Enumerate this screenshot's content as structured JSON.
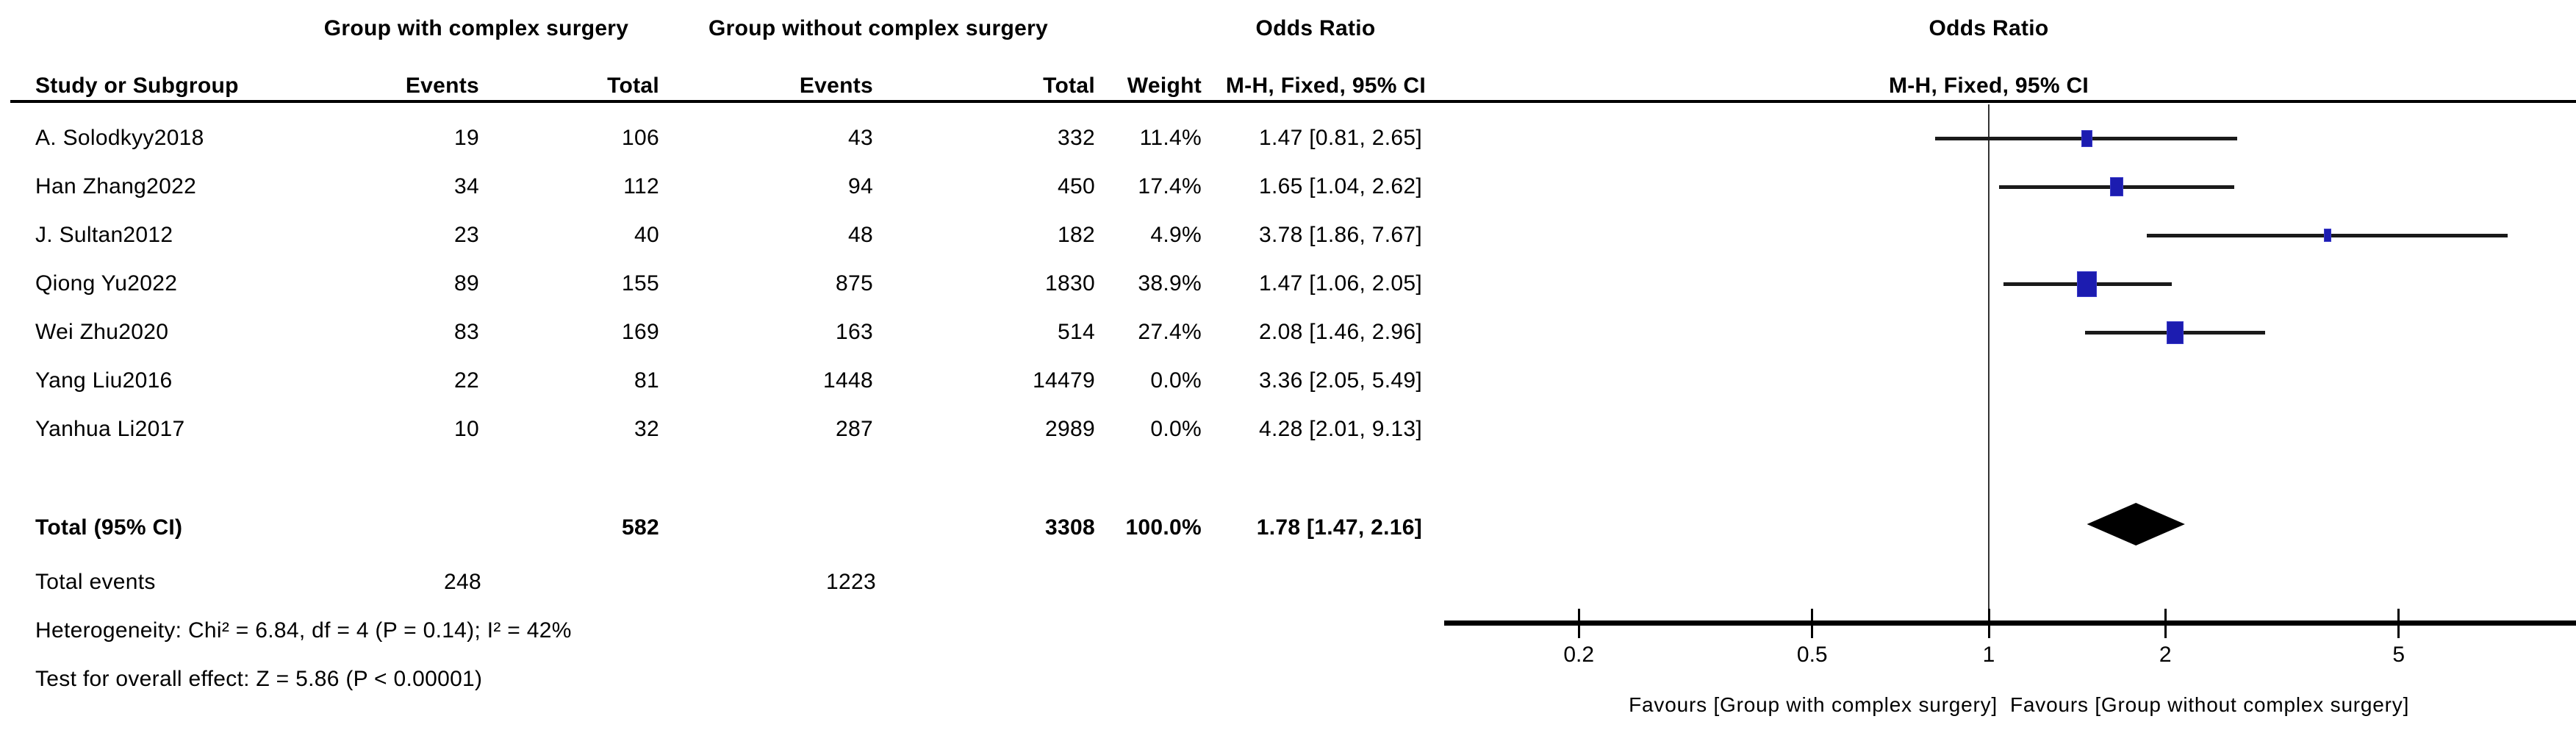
{
  "table_header": {
    "group1": "Group with complex surgery",
    "group2": "Group without complex surgery",
    "odds_ratio": "Odds Ratio",
    "study_or_subgroup": "Study or Subgroup",
    "events": "Events",
    "total": "Total",
    "weight": "Weight",
    "mh_fixed_ci": "M-H, Fixed, 95% CI"
  },
  "chart_data": {
    "type": "forest",
    "effect_measure": "Odds Ratio (M-H, Fixed, 95% CI)",
    "x_axis": {
      "scale": "log",
      "ticks": [
        0.2,
        0.5,
        1,
        2,
        5
      ],
      "tick_labels": [
        "0.2",
        "0.5",
        "1",
        "2",
        "5"
      ],
      "favours_left": "Favours [Group with complex surgery]",
      "favours_right": "Favours [Group without complex surgery]"
    },
    "studies": [
      {
        "name": "A. Solodkyy2018",
        "events1": 19,
        "total1": 106,
        "events2": 43,
        "total2": 332,
        "weight": "11.4%",
        "weight_value": 11.4,
        "ci_text": "1.47 [0.81, 2.65]",
        "or": 1.47,
        "lo": 0.81,
        "hi": 2.65,
        "plotted": true
      },
      {
        "name": "Han Zhang2022",
        "events1": 34,
        "total1": 112,
        "events2": 94,
        "total2": 450,
        "weight": "17.4%",
        "weight_value": 17.4,
        "ci_text": "1.65 [1.04, 2.62]",
        "or": 1.65,
        "lo": 1.04,
        "hi": 2.62,
        "plotted": true
      },
      {
        "name": "J. Sultan2012",
        "events1": 23,
        "total1": 40,
        "events2": 48,
        "total2": 182,
        "weight": "4.9%",
        "weight_value": 4.9,
        "ci_text": "3.78 [1.86, 7.67]",
        "or": 3.78,
        "lo": 1.86,
        "hi": 7.67,
        "plotted": true
      },
      {
        "name": "Qiong Yu2022",
        "events1": 89,
        "total1": 155,
        "events2": 875,
        "total2": 1830,
        "weight": "38.9%",
        "weight_value": 38.9,
        "ci_text": "1.47 [1.06, 2.05]",
        "or": 1.47,
        "lo": 1.06,
        "hi": 2.05,
        "plotted": true
      },
      {
        "name": "Wei Zhu2020",
        "events1": 83,
        "total1": 169,
        "events2": 163,
        "total2": 514,
        "weight": "27.4%",
        "weight_value": 27.4,
        "ci_text": "2.08 [1.46, 2.96]",
        "or": 2.08,
        "lo": 1.46,
        "hi": 2.96,
        "plotted": true
      },
      {
        "name": "Yang Liu2016",
        "events1": 22,
        "total1": 81,
        "events2": 1448,
        "total2": 14479,
        "weight": "0.0%",
        "weight_value": 0.0,
        "ci_text": "3.36 [2.05, 5.49]",
        "or": 3.36,
        "lo": 2.05,
        "hi": 5.49,
        "plotted": false
      },
      {
        "name": "Yanhua Li2017",
        "events1": 10,
        "total1": 32,
        "events2": 287,
        "total2": 2989,
        "weight": "0.0%",
        "weight_value": 0.0,
        "ci_text": "4.28 [2.01, 9.13]",
        "or": 4.28,
        "lo": 2.01,
        "hi": 9.13,
        "plotted": false
      }
    ],
    "total": {
      "label": "Total (95% CI)",
      "total1": 582,
      "total2": 3308,
      "weight": "100.0%",
      "ci_text": "1.78 [1.47, 2.16]",
      "or": 1.78,
      "lo": 1.47,
      "hi": 2.16
    },
    "total_events": {
      "label": "Total events",
      "events1": 248,
      "events2": 1223
    },
    "heterogeneity": "Heterogeneity: Chi² = 6.84, df = 4 (P = 0.14); I² = 42%",
    "overall_effect": "Test for overall effect: Z = 5.86 (P < 0.00001)"
  },
  "colors": {
    "square": "#1c1cb0",
    "ci_line": "#1a1a1a",
    "diamond": "#000000",
    "axis": "#000000",
    "background": "#ffffff"
  }
}
